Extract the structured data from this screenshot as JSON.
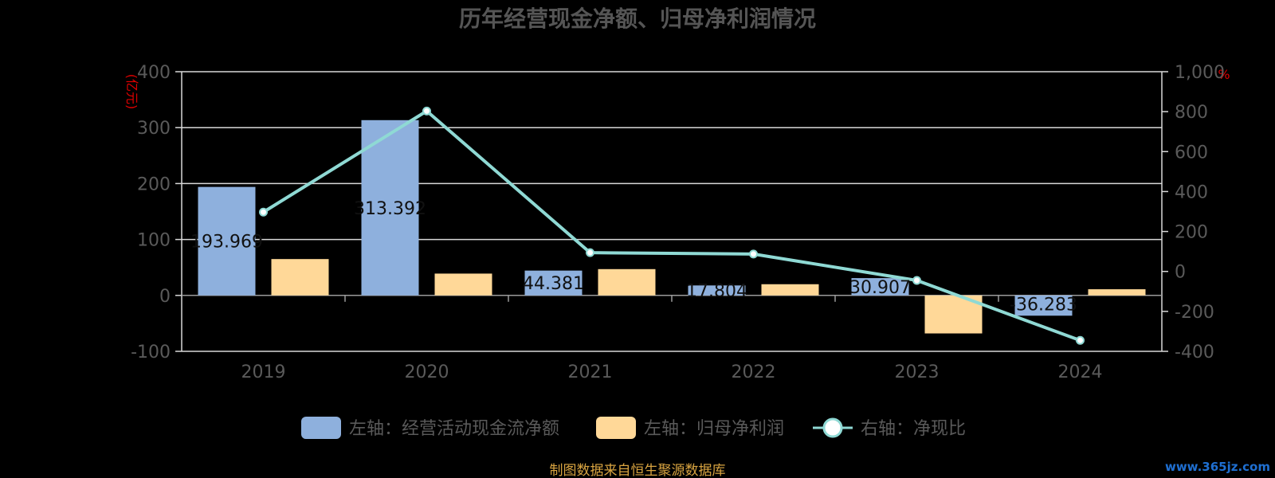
{
  "chart_data": {
    "type": "bar",
    "title": "历年经营现金净额、归母净利润情况",
    "categories": [
      "2019",
      "2020",
      "2021",
      "2022",
      "2023",
      "2024"
    ],
    "left_axis": {
      "unit": "(亿元)",
      "ylim": [
        -100,
        400
      ],
      "ticks": [
        "400",
        "300",
        "200",
        "100",
        "0",
        "-100"
      ]
    },
    "right_axis": {
      "unit": "%",
      "ylim": [
        -400,
        1000
      ],
      "ticks": [
        "1,000",
        "800",
        "600",
        "400",
        "200",
        "0",
        "-200",
        "-400"
      ]
    },
    "series": [
      {
        "name": "左轴：经营活动现金流净额",
        "type": "bar",
        "axis": "left",
        "color": "#8eb0dd",
        "values": [
          193.969,
          313.392,
          44.381,
          17.804,
          30.907,
          -36.283
        ],
        "labels": [
          "193.969",
          "313.392",
          "44.381",
          "17.804",
          "30.907",
          "-36.283"
        ]
      },
      {
        "name": "左轴：归母净利润",
        "type": "bar",
        "axis": "left",
        "color": "#ffd898",
        "values": [
          65,
          39,
          47,
          20,
          -68,
          11
        ]
      },
      {
        "name": "右轴：净现比",
        "type": "line",
        "axis": "right",
        "color": "#8fd9d4",
        "values": [
          297,
          803,
          94,
          87,
          -45,
          -345
        ]
      }
    ],
    "legend_position": "bottom",
    "grid": true
  },
  "footer": {
    "source": "制图数据来自恒生聚源数据库",
    "watermark": "www.365jz.com"
  }
}
